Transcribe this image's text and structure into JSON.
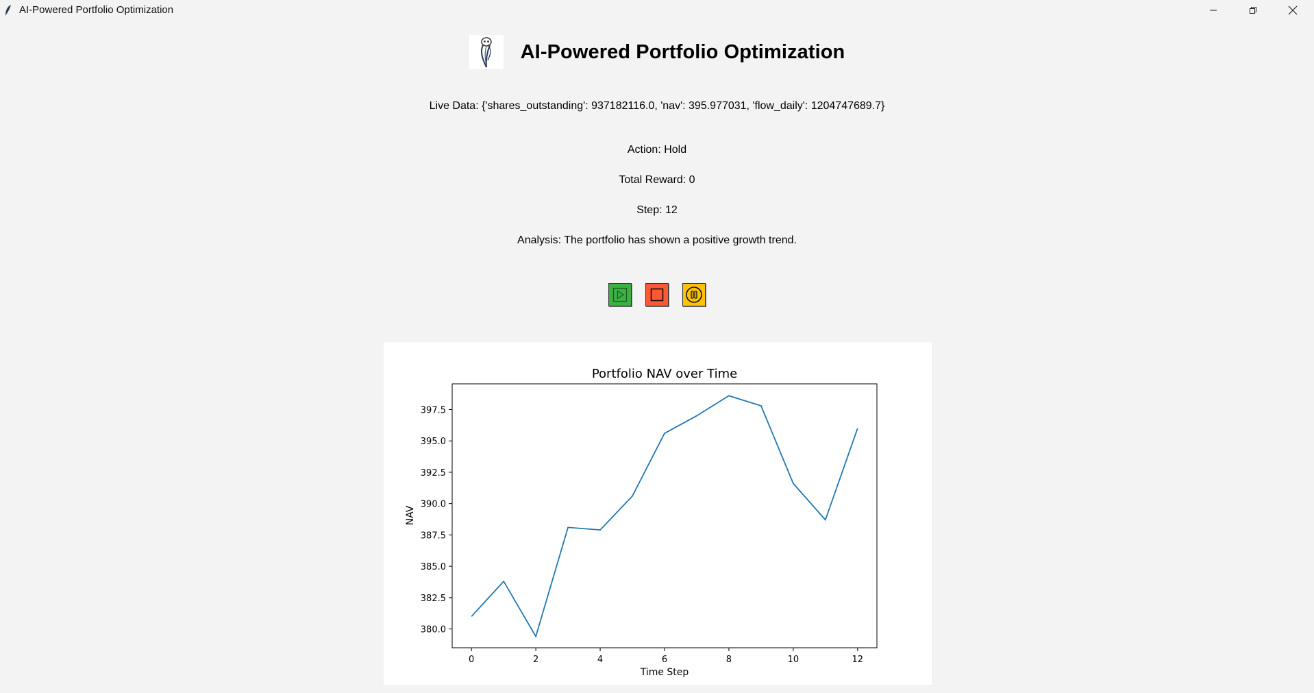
{
  "window": {
    "title": "AI-Powered Portfolio Optimization",
    "controls": [
      "minimize",
      "restore",
      "close"
    ]
  },
  "header": {
    "logo_icon": "owl-feather-logo",
    "title": "AI-Powered Portfolio Optimization"
  },
  "status": {
    "live_data": "Live Data: {'shares_outstanding': 937182116.0, 'nav': 395.977031, 'flow_daily': 1204747689.7}",
    "action": "Action: Hold",
    "total_reward": "Total Reward: 0",
    "step": "Step: 12",
    "analysis": "Analysis: The portfolio has shown a positive growth trend."
  },
  "controls": {
    "play": {
      "icon": "play-icon",
      "color": "#3cb043"
    },
    "stop": {
      "icon": "stop-icon",
      "color": "#ff5733"
    },
    "pause": {
      "icon": "pause-icon",
      "color": "#ffc107"
    }
  },
  "chart_data": {
    "type": "line",
    "title": "Portfolio NAV over Time",
    "xlabel": "Time Step",
    "ylabel": "NAV",
    "x": [
      0,
      1,
      2,
      3,
      4,
      5,
      6,
      7,
      8,
      9,
      10,
      11,
      12
    ],
    "values": [
      381.0,
      383.8,
      379.4,
      388.1,
      387.9,
      390.6,
      395.6,
      397.0,
      398.6,
      397.8,
      391.6,
      388.7,
      396.0
    ],
    "xlim": [
      -0.6,
      12.6
    ],
    "ylim": [
      378.5,
      399.55
    ],
    "xticks": [
      0,
      2,
      4,
      6,
      8,
      10,
      12
    ],
    "yticks": [
      380.0,
      382.5,
      385.0,
      387.5,
      390.0,
      392.5,
      395.0,
      397.5
    ],
    "line_color": "#1f77b4",
    "grid": false
  }
}
